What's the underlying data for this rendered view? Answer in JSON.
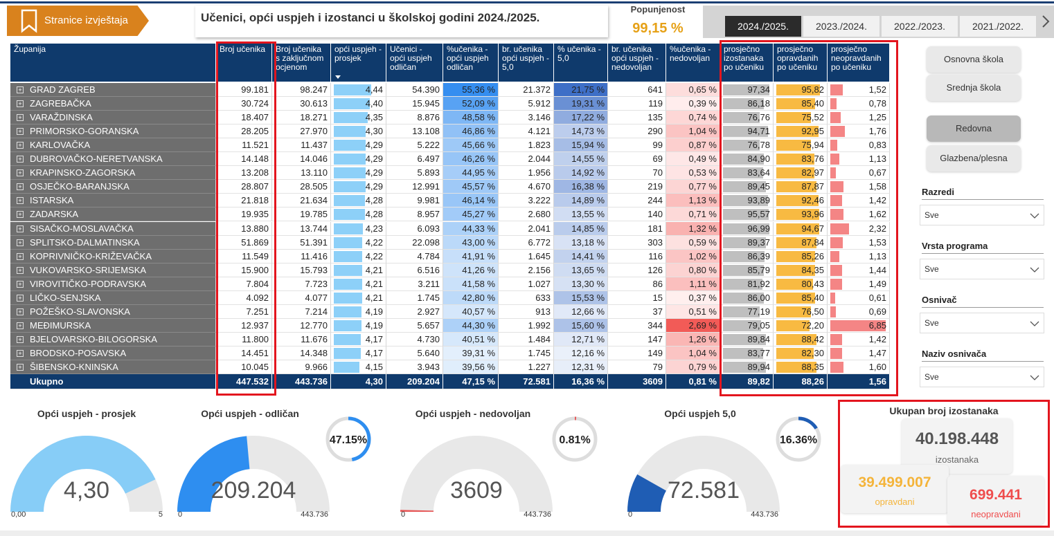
{
  "header": {
    "nav_button": "Stranice izvještaja",
    "title": "Učenici, opći uspjeh i izostanci u školskoj godini 2024./2025.",
    "fill_label": "Popunjenost",
    "fill_value": "99,15 %",
    "years": [
      "2024./2025.",
      "2023./2024.",
      "2022./2023.",
      "2021./2022."
    ]
  },
  "table": {
    "columns": [
      "Županija",
      "Broj učenika",
      "Broj učenika s zaključnom ocjenom",
      "opći uspjeh - prosjek",
      "Učenici - opći uspjeh odličan",
      "%učenika - opći uspjeh odličan",
      "br. učenika opći uspjeh - 5,0",
      "% učenika - 5,0",
      "br. učenika opći uspjeh - nedovoljan",
      "%učenika - nedovoljan",
      "prosječno izostanaka po učeniku",
      "prosječno opravdanih po učeniku",
      "prosječno neopravdanih po učeniku"
    ],
    "rows": [
      [
        "GRAD ZAGREB",
        "99.181",
        "98.247",
        "4,44",
        "54.390",
        "55,36 %",
        "21.372",
        "21,75 %",
        "641",
        "0,65 %",
        "97,34",
        "95,82",
        "1,52"
      ],
      [
        "ZAGREBAČKA",
        "30.724",
        "30.613",
        "4,40",
        "15.945",
        "52,09 %",
        "5.912",
        "19,31 %",
        "119",
        "0,39 %",
        "86,18",
        "85,40",
        "0,78"
      ],
      [
        "VARAŽDINSKA",
        "18.407",
        "18.271",
        "4,35",
        "8.876",
        "48,58 %",
        "3.146",
        "17,22 %",
        "135",
        "0,74 %",
        "76,76",
        "75,52",
        "1,25"
      ],
      [
        "PRIMORSKO-GORANSKA",
        "28.205",
        "27.970",
        "4,30",
        "13.108",
        "46,86 %",
        "4.121",
        "14,73 %",
        "290",
        "1,04 %",
        "94,71",
        "92,95",
        "1,76"
      ],
      [
        "KARLOVAČKA",
        "11.521",
        "11.437",
        "4,29",
        "5.222",
        "45,66 %",
        "1.823",
        "15,94 %",
        "99",
        "0,87 %",
        "76,78",
        "75,94",
        "0,83"
      ],
      [
        "DUBROVAČKO-NERETVANSKA",
        "14.148",
        "14.046",
        "4,29",
        "6.497",
        "46,26 %",
        "2.044",
        "14,55 %",
        "69",
        "0,49 %",
        "84,90",
        "83,76",
        "1,13"
      ],
      [
        "KRAPINSKO-ZAGORSKA",
        "13.208",
        "13.110",
        "4,29",
        "5.893",
        "44,95 %",
        "1.956",
        "14,92 %",
        "70",
        "0,53 %",
        "83,64",
        "82,97",
        "0,67"
      ],
      [
        "OSJEČKO-BARANJSKA",
        "28.807",
        "28.505",
        "4,29",
        "12.991",
        "45,57 %",
        "4.670",
        "16,38 %",
        "219",
        "0,77 %",
        "89,45",
        "87,87",
        "1,58"
      ],
      [
        "ISTARSKA",
        "21.818",
        "21.634",
        "4,28",
        "9.981",
        "46,14 %",
        "3.222",
        "14,89 %",
        "244",
        "1,13 %",
        "93,89",
        "92,46",
        "1,42"
      ],
      [
        "ZADARSKA",
        "19.935",
        "19.785",
        "4,28",
        "8.957",
        "45,27 %",
        "2.680",
        "13,55 %",
        "140",
        "0,71 %",
        "95,57",
        "93,96",
        "1,62"
      ],
      [
        "SISAČKO-MOSLAVAČKA",
        "13.880",
        "13.744",
        "4,23",
        "6.093",
        "44,33 %",
        "2.041",
        "14,85 %",
        "181",
        "1,32 %",
        "96,99",
        "94,67",
        "2,32"
      ],
      [
        "SPLITSKO-DALMATINSKA",
        "51.869",
        "51.391",
        "4,22",
        "22.098",
        "43,00 %",
        "6.772",
        "13,18 %",
        "303",
        "0,59 %",
        "89,37",
        "87,84",
        "1,53"
      ],
      [
        "KOPRIVNIČKO-KRIŽEVAČKA",
        "11.549",
        "11.416",
        "4,22",
        "4.784",
        "41,91 %",
        "1.645",
        "14,41 %",
        "116",
        "1,02 %",
        "86,39",
        "85,26",
        "1,13"
      ],
      [
        "VUKOVARSKO-SRIJEMSKA",
        "15.900",
        "15.793",
        "4,21",
        "6.516",
        "41,26 %",
        "2.156",
        "13,65 %",
        "126",
        "0,80 %",
        "85,79",
        "84,35",
        "1,44"
      ],
      [
        "VIROVITIČKO-PODRAVSKA",
        "7.804",
        "7.723",
        "4,21",
        "3.211",
        "41,58 %",
        "1.027",
        "13,30 %",
        "86",
        "1,11 %",
        "81,92",
        "80,43",
        "1,49"
      ],
      [
        "LIČKO-SENJSKA",
        "4.092",
        "4.077",
        "4,21",
        "1.745",
        "42,80 %",
        "633",
        "15,53 %",
        "15",
        "0,37 %",
        "86,00",
        "85,40",
        "0,61"
      ],
      [
        "POŽEŠKO-SLAVONSKA",
        "7.251",
        "7.214",
        "4,19",
        "2.927",
        "40,57 %",
        "913",
        "12,66 %",
        "37",
        "0,51 %",
        "77,19",
        "76,50",
        "0,69"
      ],
      [
        "MEĐIMURSKA",
        "12.937",
        "12.770",
        "4,19",
        "5.657",
        "44,30 %",
        "1.992",
        "15,60 %",
        "344",
        "2,69 %",
        "79,05",
        "72,20",
        "6,85"
      ],
      [
        "BJELOVARSKO-BILOGORSKA",
        "11.800",
        "11.676",
        "4,17",
        "4.730",
        "40,51 %",
        "1.484",
        "12,71 %",
        "147",
        "1,26 %",
        "89,84",
        "88,42",
        "1,42"
      ],
      [
        "BRODSKO-POSAVSKA",
        "14.451",
        "14.348",
        "4,17",
        "5.640",
        "39,31 %",
        "1.745",
        "12,16 %",
        "149",
        "1,04 %",
        "83,77",
        "82,30",
        "1,47"
      ],
      [
        "ŠIBENSKO-KNINSKA",
        "10.045",
        "9.966",
        "4,15",
        "3.943",
        "39,56 %",
        "1.227",
        "12,31 %",
        "79",
        "0,79 %",
        "89,94",
        "88,35",
        "1,60"
      ]
    ],
    "total": [
      "Ukupno",
      "447.532",
      "443.736",
      "4,30",
      "209.204",
      "47,15 %",
      "72.581",
      "16,36 %",
      "3609",
      "0,81 %",
      "89,82",
      "88,26",
      "1,56"
    ]
  },
  "sidebar": {
    "school_types": [
      "Osnovna škola",
      "Srednja škola"
    ],
    "programs": [
      "Redovna",
      "Glazbena/plesna"
    ],
    "filters": [
      {
        "label": "Razredi",
        "value": "Sve"
      },
      {
        "label": "Vrsta programa",
        "value": "Sve"
      },
      {
        "label": "Osnivač",
        "value": "Sve"
      },
      {
        "label": "Naziv osnivača",
        "value": "Sve"
      }
    ]
  },
  "gauges": [
    {
      "title": "Opći uspjeh - prosjek",
      "value": "4,30",
      "min": "0,00",
      "max": "5"
    },
    {
      "title": "Opći uspjeh - odličan",
      "value": "209.204",
      "min": "0",
      "max": "443.736",
      "ring": "47.15%"
    },
    {
      "title": "Opći uspjeh - nedovoljan",
      "value": "3609",
      "min": "0",
      "max": "443.736",
      "ring": "0.81%"
    },
    {
      "title": "Opći uspjeh 5,0",
      "value": "72.581",
      "min": "0",
      "max": "443.736",
      "ring": "16.36%"
    }
  ],
  "absences": {
    "title": "Ukupan broj izostanaka",
    "total": "40.198.448",
    "total_label": "izostanaka",
    "excused": "39.499.007",
    "excused_label": "opravdani",
    "unexcused": "699.441",
    "unexcused_label": "neopravdani"
  }
}
